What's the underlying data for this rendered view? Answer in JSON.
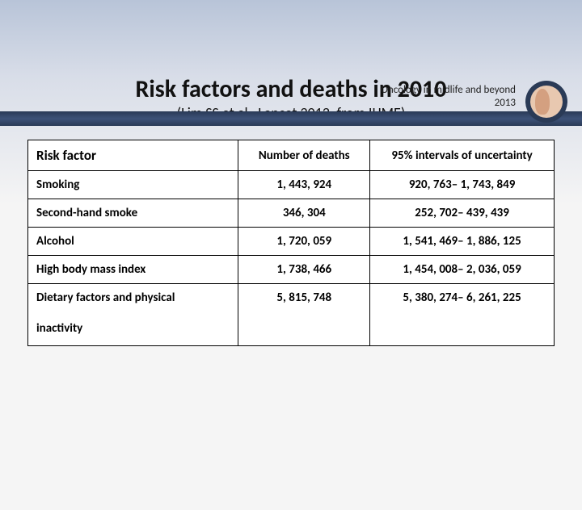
{
  "header": {
    "line1": "Oncology in midlife and beyond",
    "line2": "2013"
  },
  "title": "Risk factors and deaths in 2010",
  "subtitle": "(Lim SS et al , Lancet 2012, from IHME)",
  "table": {
    "columns": {
      "risk_factor": "Risk factor",
      "deaths": "Number of deaths",
      "ci": "95% intervals of uncertainty"
    },
    "rows": [
      {
        "rf": "Smoking",
        "deaths": "1, 443, 924",
        "ci": "920, 763– 1, 743, 849"
      },
      {
        "rf": "Second-hand smoke",
        "deaths": "346, 304",
        "ci": "252, 702– 439, 439"
      },
      {
        "rf": "Alcohol",
        "deaths": "1, 720, 059",
        "ci": "1, 541, 469– 1, 886, 125"
      },
      {
        "rf": "High body mass index",
        "deaths": "1, 738, 466",
        "ci": "1, 454, 008– 2, 036, 059"
      }
    ],
    "last_row": {
      "rf_line1": "Dietary factors and physical",
      "rf_line2": "inactivity",
      "deaths": "5, 815, 748",
      "ci": "5, 380, 274– 6, 261, 225"
    }
  },
  "colors": {
    "band_dark": "#2a3a56",
    "band_mid": "#3d5278",
    "bg_top": "#b8c4d8",
    "bg_bottom": "#f5f5f5"
  }
}
